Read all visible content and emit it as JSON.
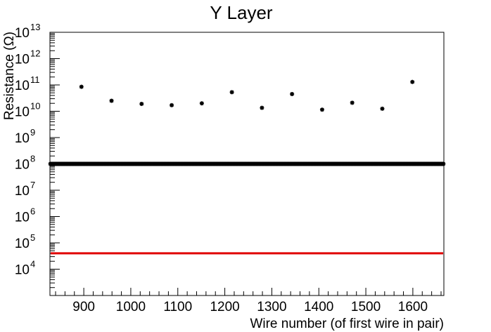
{
  "chart_data": {
    "type": "scatter",
    "title": "Y Layer",
    "xlabel": "Wire number (of first wire in pair)",
    "ylabel": "Resistance (Ω)",
    "xlim": [
      828,
      1666
    ],
    "ylim_log10": [
      3,
      13
    ],
    "yscale": "log",
    "x_ticks": [
      900,
      1000,
      1100,
      1200,
      1300,
      1400,
      1500,
      1600
    ],
    "y_tick_exponents": [
      4,
      5,
      6,
      7,
      8,
      9,
      10,
      11,
      12,
      13
    ],
    "y_tick_base": "10",
    "grid": false,
    "legend": "none",
    "colors": {
      "points": "#000000",
      "threshold_line": "#e00000",
      "axes": "#000000"
    },
    "threshold_line": {
      "y": 40000,
      "x_range": [
        828,
        1666
      ]
    },
    "dense_band": {
      "y": 100000000,
      "x_range": [
        828,
        1666
      ],
      "description_marker": "star"
    },
    "outlier_points": [
      {
        "x": 895,
        "y": 85000000000.0
      },
      {
        "x": 959,
        "y": 25000000000.0
      },
      {
        "x": 1023,
        "y": 19000000000.0
      },
      {
        "x": 1087,
        "y": 17000000000.0
      },
      {
        "x": 1151,
        "y": 20000000000.0
      },
      {
        "x": 1215,
        "y": 53000000000.0
      },
      {
        "x": 1279,
        "y": 13500000000.0
      },
      {
        "x": 1343,
        "y": 45000000000.0
      },
      {
        "x": 1407,
        "y": 11500000000.0
      },
      {
        "x": 1471,
        "y": 21000000000.0
      },
      {
        "x": 1535,
        "y": 12500000000.0
      },
      {
        "x": 1599,
        "y": 130000000000.0
      }
    ]
  }
}
